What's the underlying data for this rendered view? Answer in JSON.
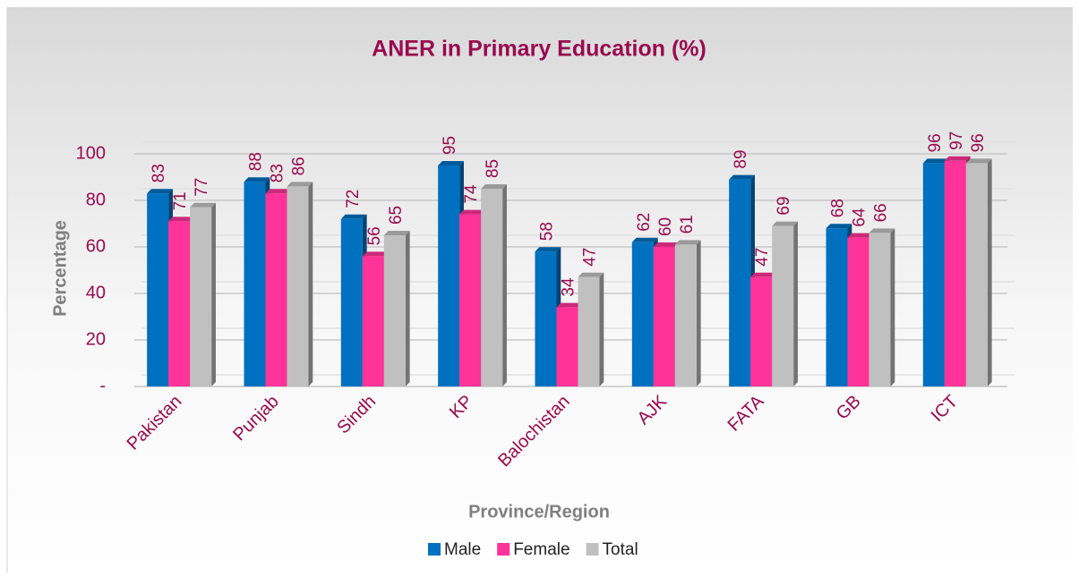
{
  "chart_data": {
    "type": "bar",
    "title": "ANER in Primary Education (%)",
    "x_label": "Province/Region",
    "y_label": "Percentage",
    "categories": [
      "Pakistan",
      "Punjab",
      "Sindh",
      "KP",
      "Balochistan",
      "AJK",
      "FATA",
      "GB",
      "ICT"
    ],
    "series": [
      {
        "name": "Male",
        "color": "#0070c0",
        "values": [
          83,
          88,
          72,
          95,
          58,
          62,
          89,
          68,
          96
        ]
      },
      {
        "name": "Female",
        "color": "#ff3399",
        "values": [
          71,
          83,
          56,
          74,
          34,
          60,
          47,
          64,
          97
        ]
      },
      {
        "name": "Total",
        "color": "#c0c0c0",
        "values": [
          77,
          86,
          65,
          85,
          47,
          61,
          69,
          66,
          96
        ]
      }
    ],
    "ylim": [
      0,
      100
    ],
    "yticks": [
      {
        "value": 0,
        "label": "-"
      },
      20,
      40,
      60,
      80,
      100
    ],
    "grid": true,
    "legend": "bottom"
  }
}
